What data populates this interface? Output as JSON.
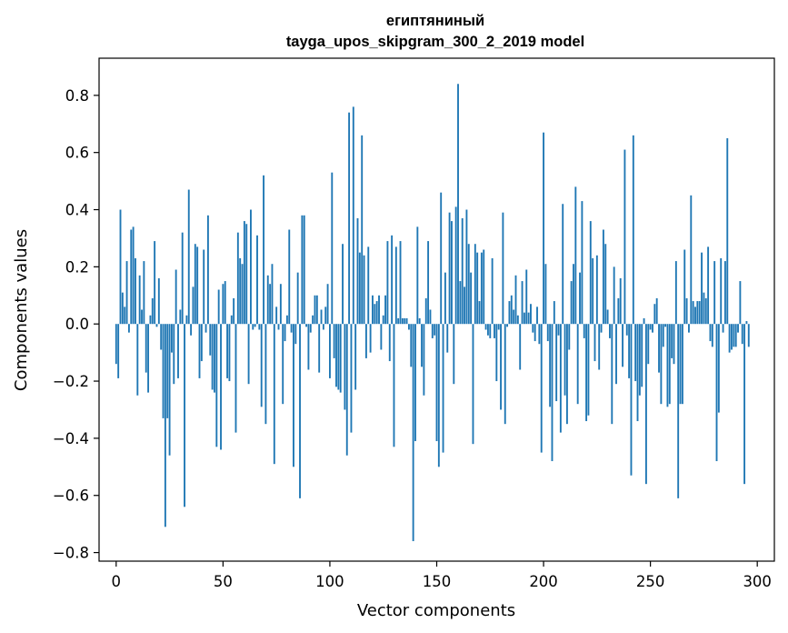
{
  "chart_data": {
    "type": "bar",
    "title": "египтяниный",
    "subtitle": "tayga_upos_skipgram_300_2_2019 model",
    "xlabel": "Vector components",
    "ylabel": "Components values",
    "xlim": [
      -8,
      308
    ],
    "ylim": [
      -0.83,
      0.93
    ],
    "xticks": [
      0,
      50,
      100,
      150,
      200,
      250,
      300
    ],
    "xtick_labels": [
      "0",
      "50",
      "100",
      "150",
      "200",
      "250",
      "300"
    ],
    "yticks": [
      -0.8,
      -0.6,
      -0.4,
      -0.2,
      0.0,
      0.2,
      0.4,
      0.6,
      0.8
    ],
    "ytick_labels": [
      "−0.8",
      "−0.6",
      "−0.4",
      "−0.2",
      "0.0",
      "0.2",
      "0.4",
      "0.6",
      "0.8"
    ],
    "grid": false,
    "bar_color": "#1f77b4",
    "values": [
      -0.14,
      -0.19,
      0.4,
      0.11,
      0.06,
      0.22,
      -0.03,
      0.33,
      0.34,
      0.23,
      -0.25,
      0.17,
      0.05,
      0.22,
      -0.17,
      -0.24,
      0.03,
      0.09,
      0.29,
      -0.01,
      0.16,
      -0.09,
      -0.33,
      -0.71,
      -0.33,
      -0.46,
      -0.1,
      -0.21,
      0.19,
      -0.19,
      0.05,
      0.32,
      -0.64,
      0.03,
      0.47,
      -0.04,
      0.13,
      0.28,
      0.27,
      -0.19,
      -0.13,
      0.26,
      -0.03,
      0.38,
      -0.11,
      -0.23,
      -0.24,
      -0.43,
      0.12,
      -0.44,
      0.14,
      0.15,
      -0.19,
      -0.2,
      0.03,
      0.09,
      -0.38,
      0.32,
      0.23,
      0.21,
      0.36,
      0.35,
      -0.21,
      0.4,
      -0.02,
      -0.01,
      0.31,
      -0.02,
      -0.29,
      0.52,
      -0.35,
      0.17,
      0.14,
      0.21,
      -0.49,
      0.06,
      -0.02,
      0.14,
      -0.28,
      -0.06,
      0.03,
      0.33,
      -0.03,
      -0.5,
      -0.07,
      0.18,
      -0.61,
      0.38,
      0.38,
      -0.01,
      -0.16,
      -0.03,
      0.03,
      0.1,
      0.1,
      -0.17,
      0.05,
      -0.02,
      0.06,
      0.14,
      -0.19,
      0.53,
      -0.12,
      -0.22,
      -0.23,
      -0.24,
      0.28,
      -0.3,
      -0.46,
      0.74,
      -0.38,
      0.76,
      -0.23,
      0.37,
      0.25,
      0.66,
      0.24,
      -0.12,
      0.27,
      -0.1,
      0.1,
      0.07,
      0.08,
      0.1,
      -0.09,
      0.03,
      0.1,
      0.29,
      -0.13,
      0.31,
      -0.43,
      0.27,
      0.02,
      0.29,
      0.02,
      0.02,
      0.02,
      -0.02,
      -0.15,
      -0.76,
      -0.41,
      0.34,
      0.02,
      -0.15,
      -0.25,
      0.09,
      0.29,
      0.05,
      -0.05,
      -0.04,
      -0.41,
      -0.5,
      0.46,
      -0.45,
      0.18,
      -0.1,
      0.39,
      0.36,
      -0.21,
      0.41,
      0.84,
      0.15,
      0.37,
      0.13,
      0.4,
      0.28,
      0.18,
      -0.42,
      0.28,
      0.25,
      0.08,
      0.25,
      0.26,
      -0.02,
      -0.04,
      -0.05,
      0.23,
      -0.05,
      -0.2,
      -0.02,
      -0.3,
      0.39,
      -0.35,
      -0.01,
      0.08,
      0.1,
      0.05,
      0.17,
      0.03,
      -0.16,
      0.15,
      0.04,
      0.19,
      0.04,
      0.07,
      -0.03,
      -0.06,
      0.06,
      -0.07,
      -0.45,
      0.67,
      0.21,
      -0.06,
      -0.29,
      -0.48,
      0.08,
      -0.27,
      -0.04,
      -0.38,
      0.42,
      -0.25,
      -0.35,
      -0.09,
      0.15,
      0.21,
      0.48,
      -0.28,
      0.18,
      0.43,
      -0.05,
      -0.34,
      -0.32,
      0.36,
      0.23,
      -0.13,
      0.24,
      -0.16,
      -0.03,
      0.33,
      0.28,
      0.05,
      -0.05,
      -0.35,
      0.2,
      -0.21,
      0.09,
      0.16,
      -0.15,
      0.61,
      -0.04,
      -0.19,
      -0.53,
      0.66,
      -0.2,
      -0.34,
      -0.25,
      -0.22,
      0.02,
      -0.56,
      -0.14,
      -0.02,
      -0.03,
      0.07,
      0.09,
      -0.17,
      -0.28,
      -0.08,
      -0.01,
      -0.29,
      -0.28,
      -0.12,
      -0.14,
      0.22,
      -0.61,
      -0.28,
      -0.28,
      0.26,
      0.09,
      -0.03,
      0.45,
      0.08,
      0.06,
      0.08,
      0.08,
      0.25,
      0.11,
      0.09,
      0.27,
      -0.06,
      -0.08,
      0.22,
      -0.48,
      -0.31,
      0.23,
      -0.03,
      0.22,
      0.65,
      -0.1,
      -0.09,
      -0.08,
      -0.08,
      -0.03,
      0.15,
      -0.07,
      -0.56,
      0.01,
      -0.08
    ]
  }
}
